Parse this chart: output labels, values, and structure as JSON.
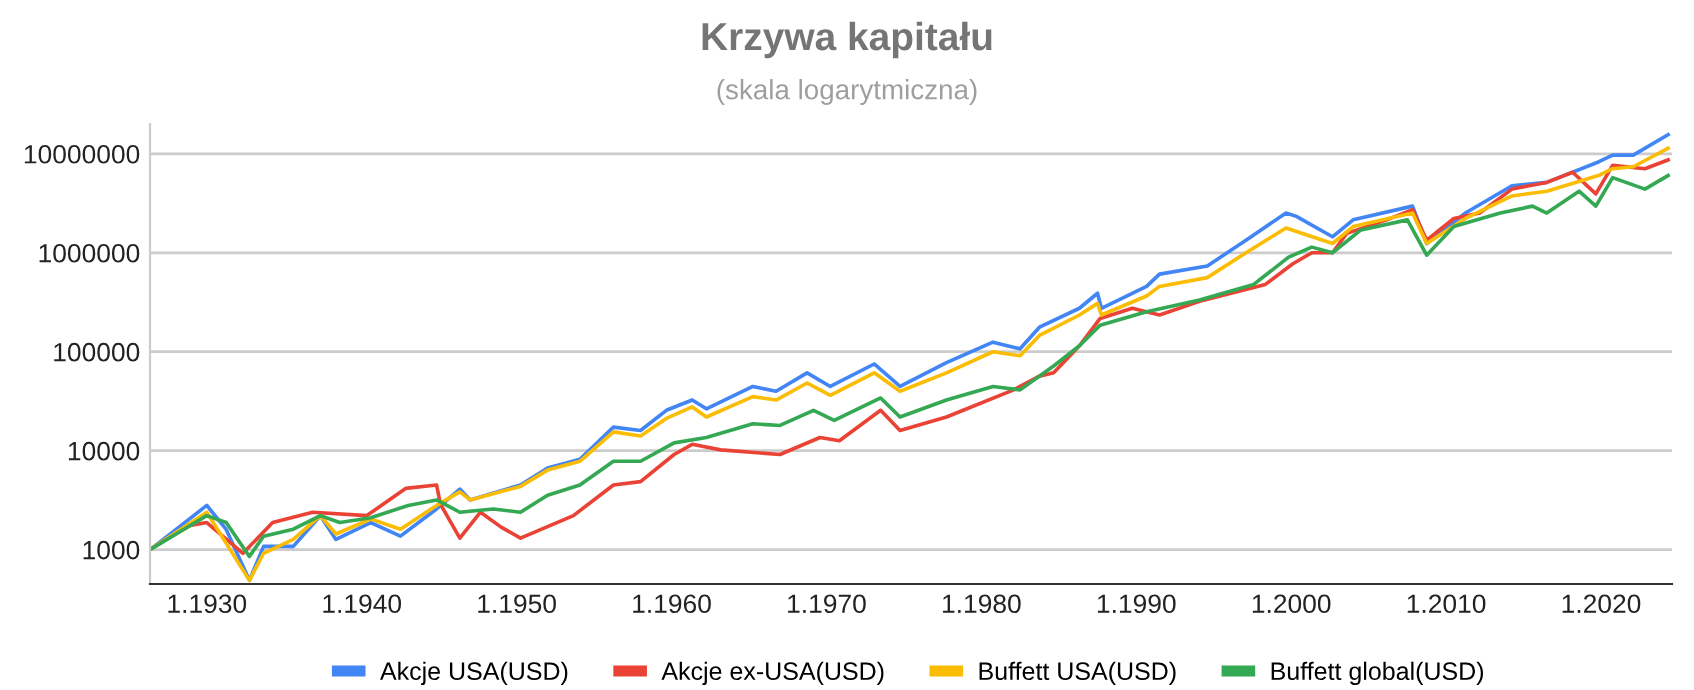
{
  "chart_data": {
    "type": "line",
    "title": "Krzywa kapitału",
    "subtitle": "(skala logarytmiczna)",
    "log": "y",
    "grid": "y",
    "legend": "bottom",
    "line_style": "solid",
    "marker": "none",
    "xlim": [
      "1926-05",
      "2024-08"
    ],
    "ylim": [
      450,
      20000000
    ],
    "xticks": [
      {
        "value": "1930-01",
        "label": "1.1930"
      },
      {
        "value": "1940-01",
        "label": "1.1940"
      },
      {
        "value": "1950-01",
        "label": "1.1950"
      },
      {
        "value": "1960-01",
        "label": "1.1960"
      },
      {
        "value": "1970-01",
        "label": "1.1970"
      },
      {
        "value": "1980-01",
        "label": "1.1980"
      },
      {
        "value": "1990-01",
        "label": "1.1990"
      },
      {
        "value": "2000-01",
        "label": "1.2000"
      },
      {
        "value": "2010-01",
        "label": "1.2010"
      },
      {
        "value": "2020-01",
        "label": "1.2020"
      }
    ],
    "yticks": [
      1000,
      10000,
      100000,
      1000000,
      10000000
    ],
    "series": [
      {
        "name": "Akcje USA(USD)",
        "color": "#4285f4",
        "x": [
          "1926-05",
          "1930-01",
          "1931-04",
          "1932-10",
          "1933-09",
          "1935-08",
          "1937-05",
          "1938-05",
          "1940-08",
          "1942-07",
          "1944-11",
          "1946-05",
          "1947-01",
          "1950-04",
          "1952-01",
          "1954-02",
          "1956-04",
          "1958-01",
          "1959-09",
          "1961-05",
          "1962-04",
          "1965-04",
          "1966-10",
          "1968-10",
          "1970-04",
          "1973-02",
          "1974-10",
          "1977-10",
          "1980-10",
          "1982-07",
          "1983-10",
          "1986-05",
          "1987-07",
          "1987-10",
          "1990-09",
          "1991-07",
          "1994-08",
          "1997-02",
          "1999-09",
          "2000-05",
          "2002-09",
          "2004-01",
          "2007-11",
          "2008-10",
          "2011-04",
          "2014-04",
          "2016-07",
          "2019-11",
          "2020-10",
          "2022-02",
          "2024-05"
        ],
        "values": [
          1000,
          2800,
          1600,
          490,
          1080,
          1080,
          2200,
          1270,
          1880,
          1370,
          2580,
          4100,
          3180,
          4500,
          6700,
          8200,
          17300,
          16000,
          25600,
          32500,
          26500,
          44600,
          39900,
          61200,
          44600,
          75200,
          44600,
          77600,
          125000,
          107000,
          177000,
          275000,
          390000,
          275000,
          457000,
          608000,
          735000,
          1340000,
          2520000,
          2330000,
          1450000,
          2150000,
          2960000,
          1240000,
          2520000,
          4750000,
          5140000,
          8270000,
          9690000,
          9690000,
          15600000
        ]
      },
      {
        "name": "Akcje ex-USA(USD)",
        "color": "#ea4335",
        "x": [
          "1926-05",
          "1928-10",
          "1930-01",
          "1932-05",
          "1934-04",
          "1936-11",
          "1940-05",
          "1942-11",
          "1944-11",
          "1945-02",
          "1946-05",
          "1947-09",
          "1949-01",
          "1950-04",
          "1953-09",
          "1956-04",
          "1958-01",
          "1960-03",
          "1961-05",
          "1963-03",
          "1967-01",
          "1969-08",
          "1970-11",
          "1973-07",
          "1974-10",
          "1977-10",
          "1982-02",
          "1983-10",
          "1984-09",
          "1986-05",
          "1987-09",
          "1989-10",
          "1991-07",
          "1994-02",
          "1998-05",
          "2000-02",
          "2001-05",
          "2002-09",
          "2003-08",
          "2006-03",
          "2007-11",
          "2008-10",
          "2010-07",
          "2012-03",
          "2014-04",
          "2016-07",
          "2018-03",
          "2019-09",
          "2020-10",
          "2022-11",
          "2024-05"
        ],
        "values": [
          1000,
          1740,
          1880,
          920,
          1880,
          2390,
          2210,
          4160,
          4500,
          2880,
          1310,
          2390,
          1690,
          1310,
          2210,
          4500,
          4870,
          9160,
          11600,
          10200,
          9160,
          13600,
          12600,
          25600,
          16000,
          21900,
          41200,
          56600,
          61200,
          115000,
          217000,
          275000,
          235000,
          323000,
          479000,
          771000,
          1000000,
          1000000,
          1570000,
          2150000,
          2730000,
          1340000,
          2220000,
          2520000,
          4400000,
          5140000,
          6510000,
          3930000,
          7640000,
          7070000,
          8670000
        ]
      },
      {
        "name": "Buffett USA(USD)",
        "color": "#fbbc04",
        "x": [
          "1926-05",
          "1930-01",
          "1932-10",
          "1933-09",
          "1935-08",
          "1937-05",
          "1938-05",
          "1940-08",
          "1942-07",
          "1944-11",
          "1946-05",
          "1947-01",
          "1950-04",
          "1952-01",
          "1954-02",
          "1956-04",
          "1958-01",
          "1959-09",
          "1961-05",
          "1962-04",
          "1965-04",
          "1966-10",
          "1968-10",
          "1970-04",
          "1973-02",
          "1974-10",
          "1977-10",
          "1980-10",
          "1982-07",
          "1983-10",
          "1986-05",
          "1987-07",
          "1987-10",
          "1990-09",
          "1991-07",
          "1994-08",
          "1997-02",
          "1999-09",
          "2002-09",
          "2004-01",
          "2007-11",
          "2008-10",
          "2011-04",
          "2014-04",
          "2016-07",
          "2019-11",
          "2020-10",
          "2022-02",
          "2024-05"
        ],
        "values": [
          1000,
          2390,
          490,
          920,
          1270,
          2210,
          1440,
          2040,
          1610,
          2800,
          3840,
          3180,
          4360,
          6370,
          7820,
          15500,
          14100,
          21200,
          27700,
          21900,
          35200,
          32500,
          48300,
          36300,
          61200,
          39900,
          61200,
          100000,
          91000,
          146000,
          235000,
          308000,
          235000,
          366000,
          457000,
          561000,
          1000000,
          1780000,
          1240000,
          1840000,
          2520000,
          1240000,
          2220000,
          3750000,
          4190000,
          6030000,
          7070000,
          7400000,
          11400000
        ]
      },
      {
        "name": "Buffett global(USD)",
        "color": "#34a853",
        "x": [
          "1926-05",
          "1930-01",
          "1931-04",
          "1932-10",
          "1933-09",
          "1935-08",
          "1937-05",
          "1938-08",
          "1940-08",
          "1943-01",
          "1944-11",
          "1946-05",
          "1948-07",
          "1950-04",
          "1952-01",
          "1954-02",
          "1956-04",
          "1958-01",
          "1960-03",
          "1962-04",
          "1965-04",
          "1967-01",
          "1969-03",
          "1970-07",
          "1973-07",
          "1974-10",
          "1977-10",
          "1980-10",
          "1982-07",
          "1984-09",
          "1986-05",
          "1987-09",
          "1990-09",
          "1994-02",
          "1997-08",
          "1999-11",
          "2001-05",
          "2002-09",
          "2004-07",
          "2007-07",
          "2008-10",
          "2010-07",
          "2013-07",
          "2015-08",
          "2016-07",
          "2018-08",
          "2019-09",
          "2020-10",
          "2022-11",
          "2024-05"
        ],
        "values": [
          1000,
          2210,
          1880,
          855,
          1370,
          1610,
          2210,
          1880,
          2100,
          2800,
          3180,
          2390,
          2580,
          2390,
          3550,
          4500,
          7820,
          7820,
          12000,
          13600,
          18700,
          18000,
          25600,
          20200,
          34100,
          21900,
          32500,
          44600,
          41200,
          71800,
          115000,
          185000,
          254000,
          333000,
          479000,
          902000,
          1140000,
          1000000,
          1700000,
          2150000,
          946000,
          1840000,
          2520000,
          2960000,
          2520000,
          4190000,
          2960000,
          5740000,
          4400000,
          6030000
        ]
      }
    ]
  }
}
